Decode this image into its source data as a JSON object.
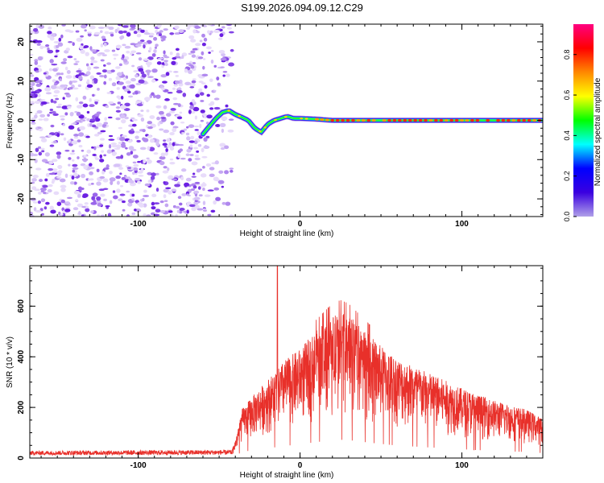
{
  "title": "S199.2026.094.09.12.C29",
  "chart_data": [
    {
      "type": "heatmap",
      "xlabel": "Height of straight line (km)",
      "ylabel": "Frequency (Hz)",
      "xlim": [
        -167,
        150
      ],
      "ylim": [
        -24.5,
        24.5
      ],
      "xticks": [
        -100,
        0,
        100
      ],
      "xtick_labels": [
        "-100",
        "0",
        "100"
      ],
      "yticks": [
        -20,
        -10,
        0,
        10,
        20
      ],
      "ytick_labels": [
        "-20",
        "-10",
        "0",
        "10",
        "20"
      ],
      "noise_region_x": [
        -167,
        -50
      ],
      "signal_trace": {
        "x": [
          -60,
          -56,
          -52,
          -48,
          -44,
          -40,
          -36,
          -32,
          -28,
          -24,
          -20,
          -16,
          -12,
          -8,
          -4,
          0,
          10,
          20,
          30,
          40,
          50,
          60,
          70,
          80,
          90,
          100,
          110,
          120,
          130,
          140,
          150
        ],
        "y": [
          -3.5,
          -1.5,
          0.5,
          2.0,
          2.5,
          1.5,
          0.8,
          0.0,
          -2.0,
          -3.0,
          -1.0,
          0.0,
          0.5,
          1.0,
          0.5,
          0.5,
          0.3,
          0.0,
          0.0,
          0.0,
          0.0,
          0.0,
          0.0,
          0.0,
          0.0,
          0.0,
          0.0,
          0.0,
          0.0,
          0.0,
          0.0
        ]
      },
      "colorbar": {
        "label": "Normalized spectral amplitude",
        "range": [
          0.0,
          0.95
        ],
        "ticks": [
          0.0,
          0.2,
          0.4,
          0.6,
          0.8
        ],
        "tick_labels": [
          "0.0",
          "0.2",
          "0.4",
          "0.6",
          "0.8"
        ],
        "stops": [
          "#b0a0e8",
          "#3a00e0",
          "#0000ff",
          "#00ffff",
          "#00ff00",
          "#ffff00",
          "#ff8800",
          "#ff0000",
          "#ff0080"
        ]
      }
    },
    {
      "type": "line",
      "xlabel": "Height of straight line (km)",
      "ylabel": "SNR (10 * v/v)",
      "xlim": [
        -167,
        150
      ],
      "ylim": [
        0,
        760
      ],
      "xticks": [
        -100,
        0,
        100
      ],
      "xtick_labels": [
        "-100",
        "0",
        "100"
      ],
      "yticks": [
        0,
        200,
        400,
        600
      ],
      "ytick_labels": [
        "0",
        "200",
        "400",
        "600"
      ],
      "line_color": "#e8302a",
      "envelope": {
        "x": [
          -167,
          -42,
          -40,
          -36,
          -30,
          -20,
          -14,
          -10,
          0,
          10,
          20,
          25,
          30,
          40,
          50,
          60,
          80,
          100,
          120,
          140,
          150
        ],
        "y": [
          25,
          28,
          60,
          160,
          200,
          260,
          290,
          320,
          360,
          420,
          470,
          480,
          470,
          420,
          370,
          330,
          280,
          230,
          190,
          160,
          130
        ]
      },
      "spike": {
        "x": -14,
        "y": 760
      }
    }
  ]
}
